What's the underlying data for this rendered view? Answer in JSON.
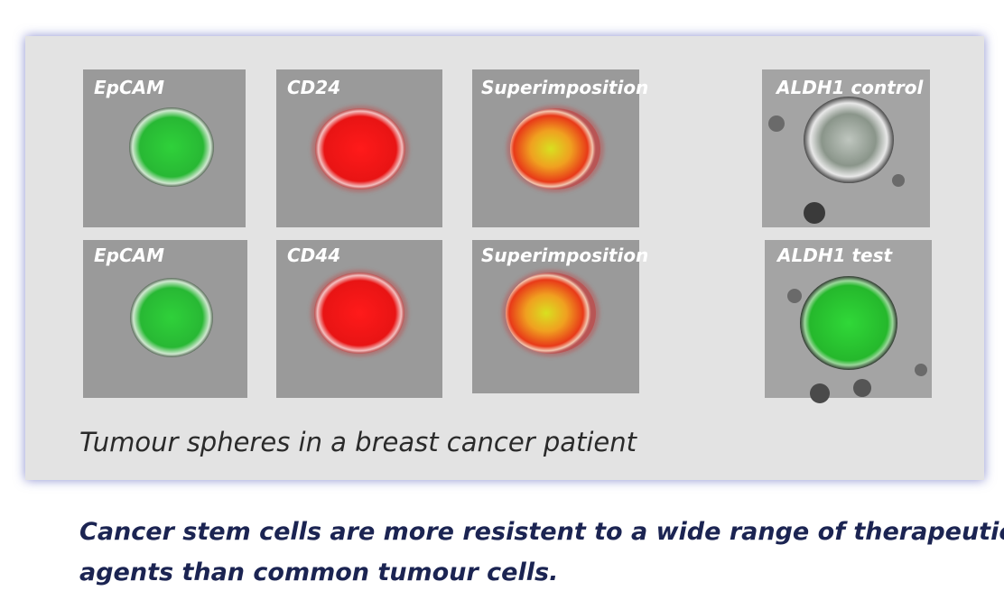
{
  "panels": [
    {
      "label": "EpCAM"
    },
    {
      "label": "CD24"
    },
    {
      "label": "Superimposition"
    },
    {
      "label": "ALDH1 control"
    },
    {
      "label": "EpCAM"
    },
    {
      "label": "CD44"
    },
    {
      "label": "Superimposition"
    },
    {
      "label": "ALDH1 test"
    }
  ],
  "caption": "Tumour spheres in a breast cancer patient",
  "statement": {
    "lines": [
      "Cancer stem cells are more resistent to a wide range of therapeutic",
      "agents than common tumour cells."
    ]
  }
}
